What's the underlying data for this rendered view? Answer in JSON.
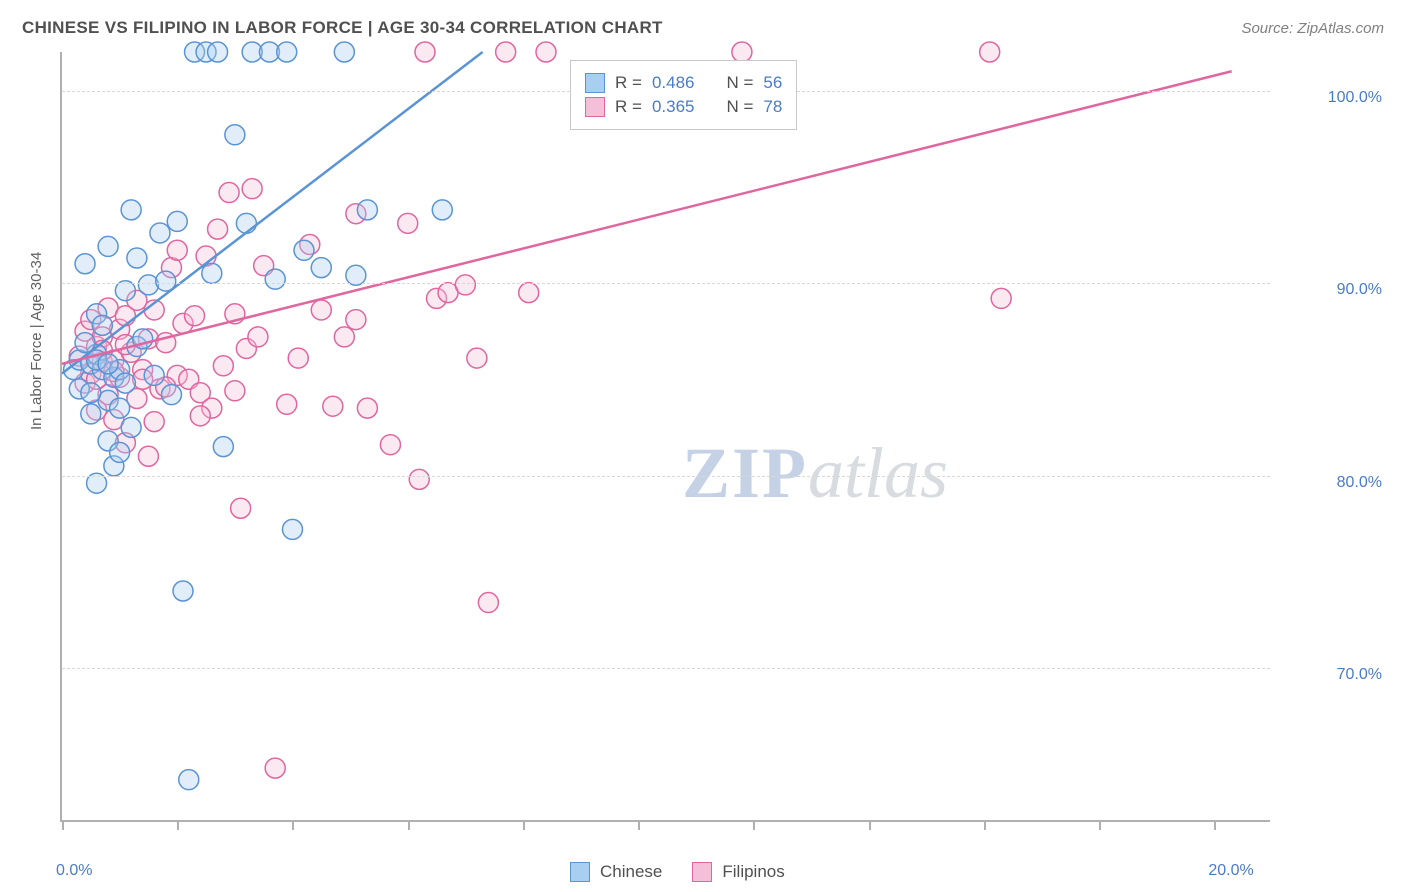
{
  "title": "CHINESE VS FILIPINO IN LABOR FORCE | AGE 30-34 CORRELATION CHART",
  "source": "Source: ZipAtlas.com",
  "watermark_zip": "ZIP",
  "watermark_atlas": "atlas",
  "y_axis_label": "In Labor Force | Age 30-34",
  "chart": {
    "type": "scatter",
    "xlim": [
      0,
      21
    ],
    "ylim": [
      62,
      102
    ],
    "x_ticks": [
      0,
      2,
      4,
      6,
      8,
      10,
      12,
      14,
      16,
      18,
      20
    ],
    "x_tick_labels": {
      "0": "0.0%",
      "20": "20.0%"
    },
    "y_grid": [
      70,
      80,
      90,
      100
    ],
    "y_tick_labels": {
      "70": "70.0%",
      "80": "80.0%",
      "90": "90.0%",
      "100": "100.0%"
    },
    "background_color": "#ffffff",
    "grid_color": "#d8d8d8",
    "axis_color": "#b0b0b0",
    "marker_radius": 10,
    "marker_stroke_width": 1.5,
    "marker_fill_opacity": 0.35,
    "line_width": 2.5,
    "series": [
      {
        "name": "Chinese",
        "color_stroke": "#5a94d4",
        "color_fill": "#a8cef0",
        "R": "0.486",
        "N": "56",
        "trend": [
          [
            0,
            85.3
          ],
          [
            7.3,
            102
          ]
        ],
        "points": [
          [
            0.2,
            85.5
          ],
          [
            0.3,
            86
          ],
          [
            0.3,
            84.5
          ],
          [
            0.4,
            91
          ],
          [
            0.5,
            85.8
          ],
          [
            0.5,
            83.2
          ],
          [
            0.6,
            86.3
          ],
          [
            0.6,
            79.6
          ],
          [
            0.6,
            88.4
          ],
          [
            0.7,
            85.5
          ],
          [
            0.7,
            87.8
          ],
          [
            0.8,
            83.9
          ],
          [
            0.8,
            81.8
          ],
          [
            0.8,
            91.9
          ],
          [
            0.9,
            85.1
          ],
          [
            0.9,
            80.5
          ],
          [
            1.0,
            81.2
          ],
          [
            1.0,
            85.5
          ],
          [
            1.1,
            89.6
          ],
          [
            1.1,
            84.8
          ],
          [
            1.2,
            82.5
          ],
          [
            1.2,
            93.8
          ],
          [
            1.3,
            86.7
          ],
          [
            1.3,
            91.3
          ],
          [
            1.4,
            87.1
          ],
          [
            1.5,
            89.9
          ],
          [
            1.6,
            85.2
          ],
          [
            1.7,
            92.6
          ],
          [
            1.8,
            90.1
          ],
          [
            1.9,
            84.2
          ],
          [
            2.0,
            93.2
          ],
          [
            2.1,
            74.0
          ],
          [
            2.2,
            64.2
          ],
          [
            2.3,
            102
          ],
          [
            2.5,
            102
          ],
          [
            2.6,
            90.5
          ],
          [
            2.7,
            102
          ],
          [
            2.8,
            81.5
          ],
          [
            3.0,
            97.7
          ],
          [
            3.2,
            93.1
          ],
          [
            3.3,
            102
          ],
          [
            3.6,
            102
          ],
          [
            3.7,
            90.2
          ],
          [
            3.9,
            102
          ],
          [
            4.0,
            77.2
          ],
          [
            4.2,
            91.7
          ],
          [
            4.9,
            102
          ],
          [
            5.1,
            90.4
          ],
          [
            5.3,
            93.8
          ],
          [
            6.6,
            93.8
          ],
          [
            4.5,
            90.8
          ],
          [
            0.4,
            86.9
          ],
          [
            0.5,
            84.3
          ],
          [
            0.6,
            86.0
          ],
          [
            0.8,
            85.8
          ],
          [
            1.0,
            83.5
          ]
        ]
      },
      {
        "name": "Filipinos",
        "color_stroke": "#e066a0",
        "color_fill": "#f4c0d8",
        "R": "0.365",
        "N": "78",
        "trend": [
          [
            0,
            85.8
          ],
          [
            20.3,
            101
          ]
        ],
        "points": [
          [
            0.3,
            86.2
          ],
          [
            0.4,
            87.5
          ],
          [
            0.4,
            84.8
          ],
          [
            0.5,
            88.1
          ],
          [
            0.5,
            85.3
          ],
          [
            0.6,
            86.7
          ],
          [
            0.6,
            83.4
          ],
          [
            0.7,
            87.2
          ],
          [
            0.7,
            85.9
          ],
          [
            0.8,
            88.7
          ],
          [
            0.8,
            84.2
          ],
          [
            0.9,
            86.0
          ],
          [
            0.9,
            82.9
          ],
          [
            1.0,
            87.6
          ],
          [
            1.0,
            85.1
          ],
          [
            1.1,
            88.3
          ],
          [
            1.1,
            81.7
          ],
          [
            1.2,
            86.4
          ],
          [
            1.3,
            84.0
          ],
          [
            1.3,
            89.1
          ],
          [
            1.4,
            85.5
          ],
          [
            1.5,
            87.1
          ],
          [
            1.5,
            81.0
          ],
          [
            1.6,
            88.6
          ],
          [
            1.7,
            84.5
          ],
          [
            1.8,
            86.9
          ],
          [
            1.9,
            90.8
          ],
          [
            2.0,
            85.2
          ],
          [
            2.1,
            87.9
          ],
          [
            2.2,
            85.0
          ],
          [
            2.3,
            88.3
          ],
          [
            2.4,
            84.3
          ],
          [
            2.5,
            91.4
          ],
          [
            2.6,
            83.5
          ],
          [
            2.7,
            92.8
          ],
          [
            2.8,
            85.7
          ],
          [
            2.9,
            94.7
          ],
          [
            3.0,
            88.4
          ],
          [
            3.0,
            84.4
          ],
          [
            3.1,
            78.3
          ],
          [
            3.2,
            86.6
          ],
          [
            3.3,
            94.9
          ],
          [
            3.4,
            87.2
          ],
          [
            3.5,
            90.9
          ],
          [
            3.7,
            64.8
          ],
          [
            3.9,
            83.7
          ],
          [
            4.1,
            86.1
          ],
          [
            4.3,
            92.0
          ],
          [
            4.5,
            88.6
          ],
          [
            4.7,
            83.6
          ],
          [
            4.9,
            87.2
          ],
          [
            5.1,
            88.1
          ],
          [
            5.1,
            93.6
          ],
          [
            5.3,
            83.5
          ],
          [
            5.7,
            81.6
          ],
          [
            6.0,
            93.1
          ],
          [
            6.2,
            79.8
          ],
          [
            6.3,
            102
          ],
          [
            6.5,
            89.2
          ],
          [
            6.7,
            89.5
          ],
          [
            7.0,
            89.9
          ],
          [
            7.2,
            86.1
          ],
          [
            7.4,
            73.4
          ],
          [
            7.7,
            102
          ],
          [
            8.1,
            89.5
          ],
          [
            8.4,
            102
          ],
          [
            11.8,
            102
          ],
          [
            16.1,
            102
          ],
          [
            16.3,
            89.2
          ],
          [
            1.6,
            82.8
          ],
          [
            2.0,
            91.7
          ],
          [
            2.4,
            83.1
          ],
          [
            0.6,
            85.0
          ],
          [
            0.7,
            86.5
          ],
          [
            0.9,
            85.4
          ],
          [
            1.1,
            86.8
          ],
          [
            1.4,
            85.0
          ],
          [
            1.8,
            84.6
          ]
        ]
      }
    ]
  },
  "legend_top": {
    "rows": [
      {
        "label_R": "R =",
        "label_N": "N ="
      },
      {
        "label_R": "R =",
        "label_N": "N ="
      }
    ]
  },
  "legend_bottom": {
    "items": [
      {
        "label": "Chinese"
      },
      {
        "label": "Filipinos"
      }
    ]
  }
}
